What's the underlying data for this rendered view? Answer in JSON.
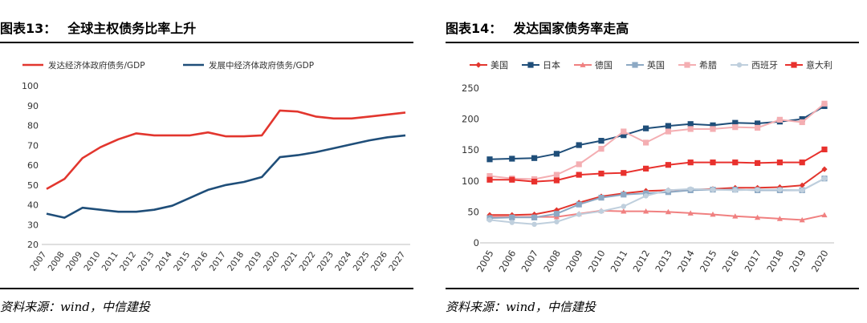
{
  "left": {
    "figure_no": "图表13：",
    "title": "全球主权债务比率上升",
    "source": "资料来源：wind，中信建投"
  },
  "right": {
    "figure_no": "图表14：",
    "title": "发达国家债务率走高",
    "source": "资料来源：wind，中信建投"
  },
  "chart_data": [
    {
      "type": "line",
      "title": "全球主权债务比率上升",
      "categories": [
        "2007",
        "2008",
        "2009",
        "2010",
        "2011",
        "2012",
        "2013",
        "2014",
        "2015",
        "2016",
        "2017",
        "2018",
        "2019",
        "2020",
        "2021",
        "2022",
        "2023",
        "2024",
        "2025",
        "2026",
        "2027"
      ],
      "ylim": [
        20,
        100
      ],
      "yticks": [
        20,
        30,
        40,
        50,
        60,
        70,
        80,
        90,
        100
      ],
      "series": [
        {
          "name": "发达经济体政府债务/GDP",
          "color": "#e2362e",
          "values": [
            48,
            53,
            63.5,
            69,
            73,
            76,
            75,
            75,
            75,
            76.5,
            74.5,
            74.5,
            75,
            87.5,
            87,
            84.5,
            83.5,
            83.5,
            84.5,
            85.5,
            86.5
          ]
        },
        {
          "name": "发展中经济体政府债务/GDP",
          "color": "#1f4e79",
          "values": [
            35.5,
            33.5,
            38.5,
            37.5,
            36.5,
            36.5,
            37.5,
            39.5,
            43.5,
            47.5,
            50,
            51.5,
            54,
            64,
            65,
            66.5,
            68.5,
            70.5,
            72.5,
            74,
            75
          ]
        }
      ]
    },
    {
      "type": "line",
      "title": "发达国家债务率走高",
      "categories": [
        "2005",
        "2006",
        "2007",
        "2008",
        "2009",
        "2010",
        "2011",
        "2012",
        "2013",
        "2014",
        "2015",
        "2016",
        "2017",
        "2018",
        "2019",
        "2020"
      ],
      "ylim": [
        0,
        250
      ],
      "yticks": [
        0,
        50,
        100,
        150,
        200,
        250
      ],
      "series": [
        {
          "name": "美国",
          "color": "#e2362e",
          "marker": "diamond",
          "values": [
            45,
            45,
            46,
            53,
            65,
            75,
            80,
            84,
            85,
            86,
            87,
            89,
            89,
            90,
            93,
            119
          ]
        },
        {
          "name": "日本",
          "color": "#1f4e79",
          "marker": "square",
          "values": [
            135,
            136,
            137,
            144,
            158,
            165,
            174,
            185,
            189,
            192,
            190,
            194,
            193,
            196,
            200,
            221
          ]
        },
        {
          "name": "德国",
          "color": "#f08080",
          "marker": "triangle",
          "values": [
            42,
            42,
            42,
            42,
            47,
            52,
            51,
            51,
            50,
            48,
            46,
            43,
            41,
            39,
            37,
            45
          ]
        },
        {
          "name": "英国",
          "color": "#8da9c4",
          "marker": "square",
          "values": [
            40,
            41,
            41,
            47,
            62,
            73,
            78,
            80,
            82,
            85,
            86,
            86,
            85,
            85,
            85,
            104
          ]
        },
        {
          "name": "希腊",
          "color": "#f4aeb2",
          "marker": "square",
          "values": [
            108,
            104,
            103,
            110,
            127,
            152,
            180,
            162,
            180,
            184,
            184,
            187,
            186,
            199,
            195,
            225
          ]
        },
        {
          "name": "西班牙",
          "color": "#bfcfdd",
          "marker": "circle",
          "values": [
            37,
            33,
            30,
            34,
            46,
            51,
            59,
            76,
            85,
            87,
            86,
            85,
            86,
            86,
            85,
            104
          ]
        },
        {
          "name": "意大利",
          "color": "#e8312d",
          "marker": "square",
          "values": [
            102,
            102,
            99,
            101,
            110,
            112,
            113,
            120,
            126,
            130,
            130,
            130,
            129,
            130,
            130,
            151
          ]
        }
      ]
    }
  ]
}
